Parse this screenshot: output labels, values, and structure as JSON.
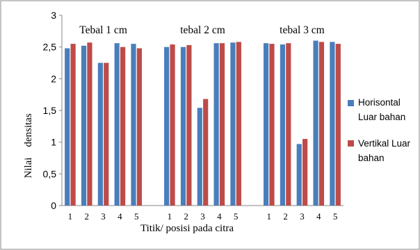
{
  "chart_data": {
    "type": "bar",
    "ylim": [
      0,
      3
    ],
    "yticks": [
      "0",
      "0,5",
      "1",
      "1,5",
      "2",
      "2,5",
      "3"
    ],
    "xlabel": "Titik/ posisi pada citra",
    "ylabel": "Nilai    densitas",
    "group_labels": [
      "Tebal 1 cm",
      "tebal 2 cm",
      "tebal 3 cm"
    ],
    "categories": [
      "1",
      "2",
      "3",
      "4",
      "5",
      "",
      "1",
      "2",
      "3",
      "4",
      "5",
      "",
      "1",
      "2",
      "3",
      "4",
      "5"
    ],
    "series": [
      {
        "name": "Horisontal Luar bahan",
        "color": "#4a7ebb",
        "values": [
          2.48,
          2.52,
          2.25,
          2.56,
          2.55,
          null,
          2.5,
          2.5,
          1.54,
          2.56,
          2.57,
          null,
          2.56,
          2.54,
          0.97,
          2.6,
          2.58
        ]
      },
      {
        "name": "Vertikal Luar bahan",
        "color": "#be4b48",
        "values": [
          2.55,
          2.57,
          2.25,
          2.5,
          2.48,
          null,
          2.54,
          2.53,
          1.68,
          2.56,
          2.58,
          null,
          2.55,
          2.56,
          1.05,
          2.58,
          2.55
        ]
      }
    ],
    "legend": {
      "placement": "right",
      "items": [
        {
          "line1": "Horisontal",
          "line2": "Luar bahan"
        },
        {
          "line1": "Vertikal Luar",
          "line2": "bahan"
        }
      ]
    },
    "grid": false
  }
}
